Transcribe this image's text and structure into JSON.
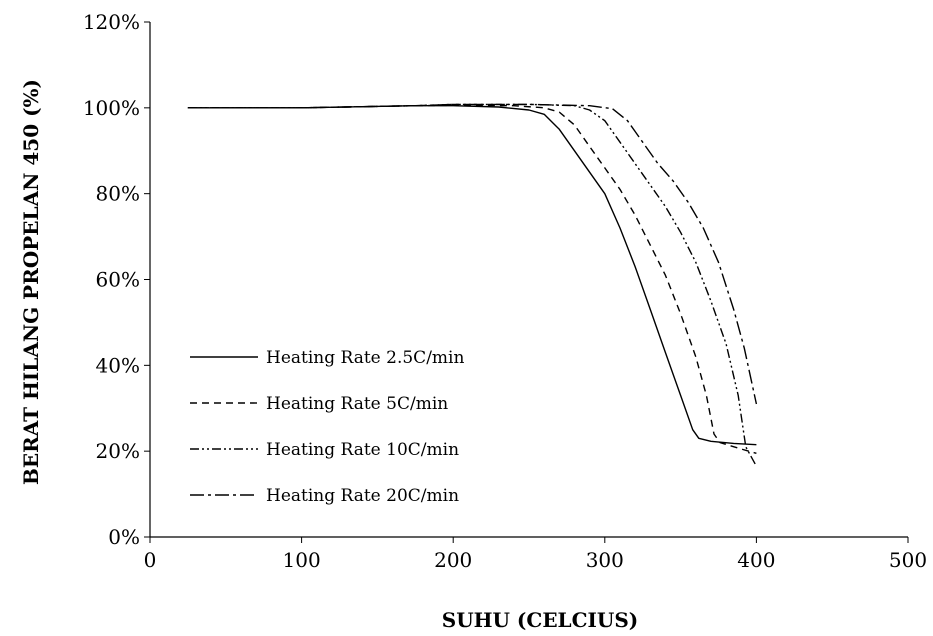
{
  "chart_data": {
    "type": "line",
    "title": "",
    "xlabel": "SUHU (CELCIUS)",
    "ylabel": "BERAT HILANG PROPELAN 450 (%)",
    "xlim": [
      0,
      500
    ],
    "ylim": [
      0,
      120
    ],
    "x_ticks": [
      "0",
      "100",
      "200",
      "300",
      "400",
      "500"
    ],
    "y_ticks": [
      "0%",
      "20%",
      "40%",
      "60%",
      "80%",
      "100%",
      "120%"
    ],
    "grid": false,
    "legend_position": "left",
    "series": [
      {
        "name": "Heating Rate 2.5C/min",
        "dash": "solid",
        "points": [
          [
            25,
            100
          ],
          [
            100,
            100
          ],
          [
            175,
            100.5
          ],
          [
            200,
            100.5
          ],
          [
            230,
            100.2
          ],
          [
            250,
            99.5
          ],
          [
            260,
            98.5
          ],
          [
            270,
            95
          ],
          [
            280,
            90
          ],
          [
            290,
            85
          ],
          [
            300,
            80
          ],
          [
            310,
            72
          ],
          [
            320,
            63
          ],
          [
            330,
            53
          ],
          [
            340,
            43
          ],
          [
            350,
            33
          ],
          [
            358,
            25
          ],
          [
            362,
            23
          ],
          [
            370,
            22.3
          ],
          [
            385,
            21.8
          ],
          [
            400,
            21.5
          ]
        ]
      },
      {
        "name": "Heating Rate 5C/min",
        "dash": "dash",
        "points": [
          [
            25,
            100
          ],
          [
            100,
            100
          ],
          [
            175,
            100.5
          ],
          [
            200,
            100.6
          ],
          [
            240,
            100.5
          ],
          [
            260,
            100
          ],
          [
            270,
            99
          ],
          [
            280,
            96
          ],
          [
            290,
            91
          ],
          [
            300,
            86
          ],
          [
            310,
            81
          ],
          [
            320,
            75
          ],
          [
            330,
            68
          ],
          [
            340,
            61
          ],
          [
            350,
            52
          ],
          [
            360,
            42
          ],
          [
            367,
            33
          ],
          [
            372,
            24
          ],
          [
            376,
            22
          ],
          [
            390,
            20.5
          ],
          [
            400,
            19.5
          ]
        ]
      },
      {
        "name": "Heating Rate 10C/min",
        "dash": "dashdotdot",
        "points": [
          [
            25,
            100
          ],
          [
            100,
            100
          ],
          [
            175,
            100.5
          ],
          [
            200,
            100.8
          ],
          [
            250,
            100.8
          ],
          [
            280,
            100.5
          ],
          [
            290,
            99.5
          ],
          [
            300,
            97
          ],
          [
            310,
            92
          ],
          [
            320,
            87
          ],
          [
            330,
            82
          ],
          [
            340,
            77
          ],
          [
            350,
            71
          ],
          [
            360,
            64
          ],
          [
            370,
            55
          ],
          [
            380,
            45
          ],
          [
            388,
            33
          ],
          [
            393,
            21
          ],
          [
            400,
            16.5
          ]
        ]
      },
      {
        "name": "Heating Rate 20C/min",
        "dash": "dashdot",
        "points": [
          [
            25,
            100
          ],
          [
            100,
            100
          ],
          [
            175,
            100.5
          ],
          [
            200,
            100.8
          ],
          [
            250,
            100.8
          ],
          [
            290,
            100.5
          ],
          [
            305,
            99.8
          ],
          [
            315,
            97
          ],
          [
            325,
            92
          ],
          [
            335,
            87
          ],
          [
            345,
            83
          ],
          [
            355,
            78
          ],
          [
            365,
            72
          ],
          [
            375,
            64
          ],
          [
            385,
            53
          ],
          [
            392,
            44
          ],
          [
            400,
            31
          ]
        ]
      }
    ]
  }
}
